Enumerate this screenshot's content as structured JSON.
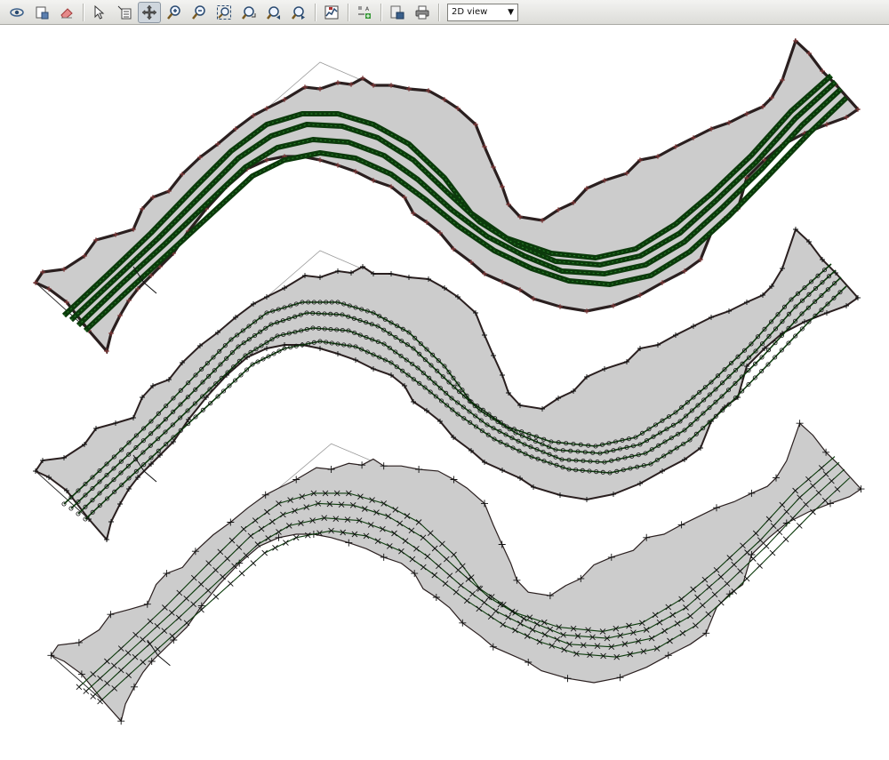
{
  "toolbar": {
    "buttons": [
      {
        "name": "eye-icon"
      },
      {
        "name": "new-layer-icon"
      },
      {
        "name": "eraser-icon"
      },
      {
        "name": "select-arrow-icon"
      },
      {
        "name": "attribute-table-icon"
      },
      {
        "name": "pan-icon",
        "active": true
      },
      {
        "name": "zoom-in-icon"
      },
      {
        "name": "zoom-out-icon"
      },
      {
        "name": "zoom-extent-icon"
      },
      {
        "name": "zoom-full-icon"
      },
      {
        "name": "zoom-previous-icon"
      },
      {
        "name": "zoom-next-icon"
      },
      {
        "name": "profile-chart-icon"
      },
      {
        "name": "label-add-icon"
      },
      {
        "name": "export-icon"
      },
      {
        "name": "print-icon"
      }
    ],
    "view_select": {
      "value": "2D view",
      "options": [
        "2D view"
      ]
    }
  },
  "map": {
    "panels": [
      {
        "name": "river-mesh-dense",
        "style": "dense"
      },
      {
        "name": "river-mesh-medium",
        "style": "medium"
      },
      {
        "name": "river-mesh-coarse",
        "style": "coarse"
      }
    ],
    "colors": {
      "fill": "#cccccc",
      "boundary": "#2a1f1f",
      "boundary_marker": "#8b3a3a",
      "centerline": "#0b3a0b",
      "vertex": "#2d8a2d",
      "tick": "#111111"
    }
  }
}
